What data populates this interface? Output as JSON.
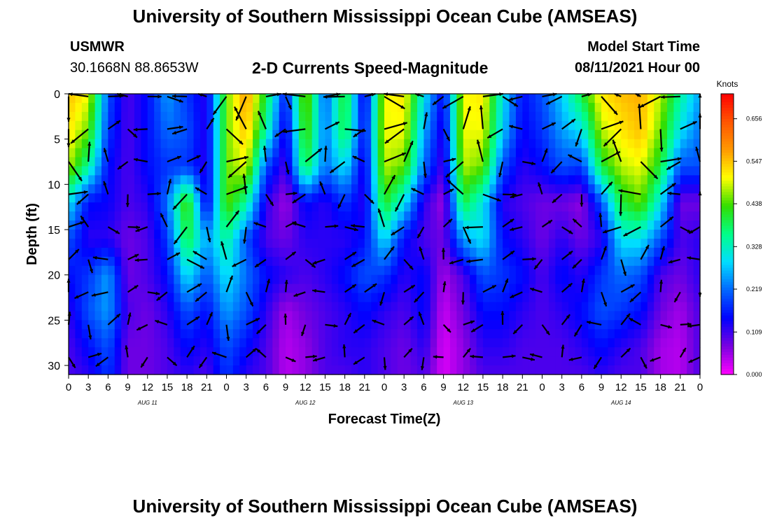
{
  "header": {
    "title": "University of Southern Mississippi Ocean Cube (AMSEAS)",
    "station_name": "USMWR",
    "station_coords": "30.1668N  88.8653W",
    "plot_subtitle": "2-D Currents Speed-Magnitude",
    "model_start_label": "Model Start Time",
    "model_start_value": "08/11/2021 Hour 00"
  },
  "footer": {
    "title": "University of Southern Mississippi Ocean Cube (AMSEAS)"
  },
  "chart_data": {
    "type": "heatmap",
    "xlabel": "Forecast Time(Z)",
    "ylabel": "Depth (ft)",
    "x_tick_labels": [
      "0",
      "3",
      "6",
      "9",
      "12",
      "15",
      "18",
      "21",
      "0",
      "3",
      "6",
      "9",
      "12",
      "15",
      "18",
      "21",
      "0",
      "3",
      "6",
      "9",
      "12",
      "15",
      "18",
      "21",
      "0",
      "3",
      "6",
      "9",
      "12",
      "15",
      "18",
      "21",
      "0"
    ],
    "day_labels": [
      {
        "label": "AUG 11",
        "hour": 12
      },
      {
        "label": "AUG 12",
        "hour": 36
      },
      {
        "label": "AUG 13",
        "hour": 60
      },
      {
        "label": "AUG 14",
        "hour": 84
      }
    ],
    "xlim_hours": [
      0,
      96
    ],
    "y_ticks": [
      0,
      5,
      10,
      15,
      20,
      25,
      30
    ],
    "ylim_ft": [
      0,
      31
    ],
    "y_inverted": true,
    "colorbar": {
      "unit": "Knots",
      "ticks": [
        "0.656",
        "0.547",
        "0.438",
        "0.328",
        "0.219",
        "0.109",
        "0.000"
      ],
      "range": [
        0,
        0.72
      ],
      "colors": [
        "#ff00ff",
        "#7a00e0",
        "#0000ff",
        "#0066ff",
        "#00ddff",
        "#00ff88",
        "#33dd00",
        "#ffff00",
        "#ff9900",
        "#ff5500",
        "#ff0000"
      ]
    },
    "speed_grid_hours": [
      0,
      3,
      6,
      9,
      12,
      15,
      18,
      21,
      24,
      27,
      30,
      33,
      36,
      39,
      42,
      45,
      48,
      51,
      54,
      57,
      60,
      63,
      66,
      69,
      72,
      75,
      78,
      81,
      84,
      87,
      90,
      93,
      96
    ],
    "speed_grid_depths_ft": [
      0,
      4,
      8,
      12,
      16,
      20,
      24,
      28,
      31
    ],
    "speed_grid": [
      [
        0.55,
        0.5,
        0.2,
        0.1,
        0.15,
        0.25,
        0.18,
        0.12,
        0.45,
        0.58,
        0.4,
        0.15,
        0.48,
        0.2,
        0.42,
        0.12,
        0.5,
        0.52,
        0.3,
        0.14,
        0.5,
        0.52,
        0.3,
        0.15,
        0.2,
        0.28,
        0.4,
        0.52,
        0.55,
        0.56,
        0.48,
        0.35,
        0.25
      ],
      [
        0.52,
        0.45,
        0.18,
        0.1,
        0.15,
        0.22,
        0.2,
        0.12,
        0.45,
        0.55,
        0.35,
        0.12,
        0.45,
        0.22,
        0.4,
        0.14,
        0.5,
        0.5,
        0.26,
        0.12,
        0.5,
        0.5,
        0.28,
        0.14,
        0.18,
        0.25,
        0.3,
        0.48,
        0.52,
        0.55,
        0.45,
        0.3,
        0.22
      ],
      [
        0.48,
        0.35,
        0.15,
        0.1,
        0.15,
        0.18,
        0.18,
        0.12,
        0.45,
        0.5,
        0.2,
        0.1,
        0.4,
        0.22,
        0.3,
        0.12,
        0.48,
        0.45,
        0.22,
        0.1,
        0.48,
        0.45,
        0.2,
        0.12,
        0.15,
        0.2,
        0.18,
        0.4,
        0.48,
        0.5,
        0.4,
        0.2,
        0.2
      ],
      [
        0.3,
        0.15,
        0.14,
        0.1,
        0.12,
        0.22,
        0.45,
        0.12,
        0.45,
        0.35,
        0.12,
        0.05,
        0.15,
        0.12,
        0.18,
        0.12,
        0.42,
        0.3,
        0.12,
        0.05,
        0.4,
        0.3,
        0.12,
        0.1,
        0.08,
        0.08,
        0.06,
        0.2,
        0.4,
        0.45,
        0.3,
        0.08,
        0.08
      ],
      [
        0.2,
        0.12,
        0.12,
        0.08,
        0.1,
        0.18,
        0.4,
        0.25,
        0.35,
        0.2,
        0.1,
        0.08,
        0.12,
        0.12,
        0.12,
        0.15,
        0.3,
        0.15,
        0.1,
        0.08,
        0.25,
        0.3,
        0.15,
        0.12,
        0.08,
        0.12,
        0.08,
        0.12,
        0.3,
        0.3,
        0.2,
        0.1,
        0.12
      ],
      [
        0.15,
        0.18,
        0.25,
        0.08,
        0.1,
        0.15,
        0.3,
        0.2,
        0.3,
        0.22,
        0.15,
        0.12,
        0.1,
        0.12,
        0.15,
        0.2,
        0.18,
        0.12,
        0.15,
        0.05,
        0.1,
        0.2,
        0.18,
        0.15,
        0.1,
        0.15,
        0.12,
        0.18,
        0.22,
        0.2,
        0.1,
        0.08,
        0.12
      ],
      [
        0.12,
        0.2,
        0.25,
        0.1,
        0.08,
        0.12,
        0.2,
        0.15,
        0.25,
        0.2,
        0.12,
        0.05,
        0.08,
        0.1,
        0.12,
        0.15,
        0.12,
        0.1,
        0.15,
        0.03,
        0.08,
        0.15,
        0.15,
        0.12,
        0.1,
        0.12,
        0.15,
        0.2,
        0.18,
        0.15,
        0.08,
        0.05,
        0.1
      ],
      [
        0.1,
        0.15,
        0.2,
        0.08,
        0.08,
        0.1,
        0.15,
        0.12,
        0.2,
        0.15,
        0.1,
        0.04,
        0.06,
        0.1,
        0.12,
        0.12,
        0.1,
        0.08,
        0.12,
        0.02,
        0.06,
        0.12,
        0.12,
        0.1,
        0.1,
        0.1,
        0.12,
        0.15,
        0.12,
        0.1,
        0.05,
        0.04,
        0.1
      ],
      [
        0.1,
        0.12,
        0.18,
        0.08,
        0.08,
        0.1,
        0.12,
        0.1,
        0.18,
        0.12,
        0.1,
        0.04,
        0.06,
        0.1,
        0.1,
        0.12,
        0.1,
        0.08,
        0.1,
        0.02,
        0.06,
        0.1,
        0.1,
        0.1,
        0.1,
        0.1,
        0.1,
        0.12,
        0.1,
        0.1,
        0.05,
        0.04,
        0.1
      ]
    ]
  }
}
